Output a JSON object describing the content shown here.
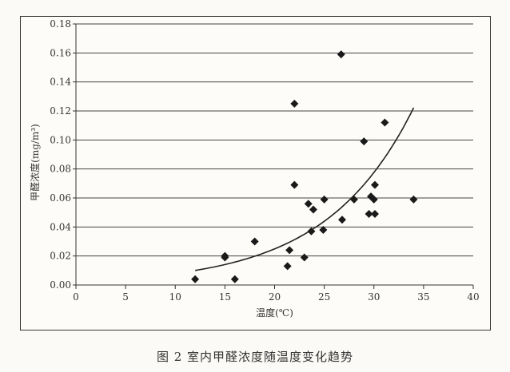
{
  "caption": "图 2   室内甲醛浓度随温度变化趋势",
  "chart_data": {
    "type": "scatter",
    "title": "",
    "xlabel": "温度(℃)",
    "ylabel": "甲醛浓度(mg/m³)",
    "xlim": [
      0,
      40
    ],
    "ylim": [
      0,
      0.18
    ],
    "xticks": [
      "0",
      "5",
      "10",
      "15",
      "20",
      "25",
      "30",
      "35",
      "40"
    ],
    "yticks": [
      "0.00",
      "0.02",
      "0.04",
      "0.06",
      "0.08",
      "0.10",
      "0.12",
      "0.14",
      "0.16",
      "0.18"
    ],
    "grid": "horizontal",
    "marker": "diamond",
    "color": "#1a1a1a",
    "points": [
      [
        12,
        0.004
      ],
      [
        15,
        0.019
      ],
      [
        15,
        0.02
      ],
      [
        16,
        0.004
      ],
      [
        18,
        0.03
      ],
      [
        21.3,
        0.013
      ],
      [
        21.5,
        0.024
      ],
      [
        22,
        0.125
      ],
      [
        22,
        0.069
      ],
      [
        23,
        0.019
      ],
      [
        23.4,
        0.056
      ],
      [
        23.7,
        0.037
      ],
      [
        23.9,
        0.052
      ],
      [
        25,
        0.059
      ],
      [
        24.9,
        0.038
      ],
      [
        26.7,
        0.159
      ],
      [
        26.8,
        0.045
      ],
      [
        28,
        0.059
      ],
      [
        29,
        0.099
      ],
      [
        29.5,
        0.049
      ],
      [
        29.7,
        0.061
      ],
      [
        30,
        0.059
      ],
      [
        30.1,
        0.069
      ],
      [
        30.1,
        0.049
      ],
      [
        31.1,
        0.112
      ],
      [
        34,
        0.059
      ]
    ],
    "trendline": {
      "type": "exponential",
      "a": 0.00256,
      "b": 0.1137,
      "x_range": [
        12,
        34
      ]
    }
  }
}
